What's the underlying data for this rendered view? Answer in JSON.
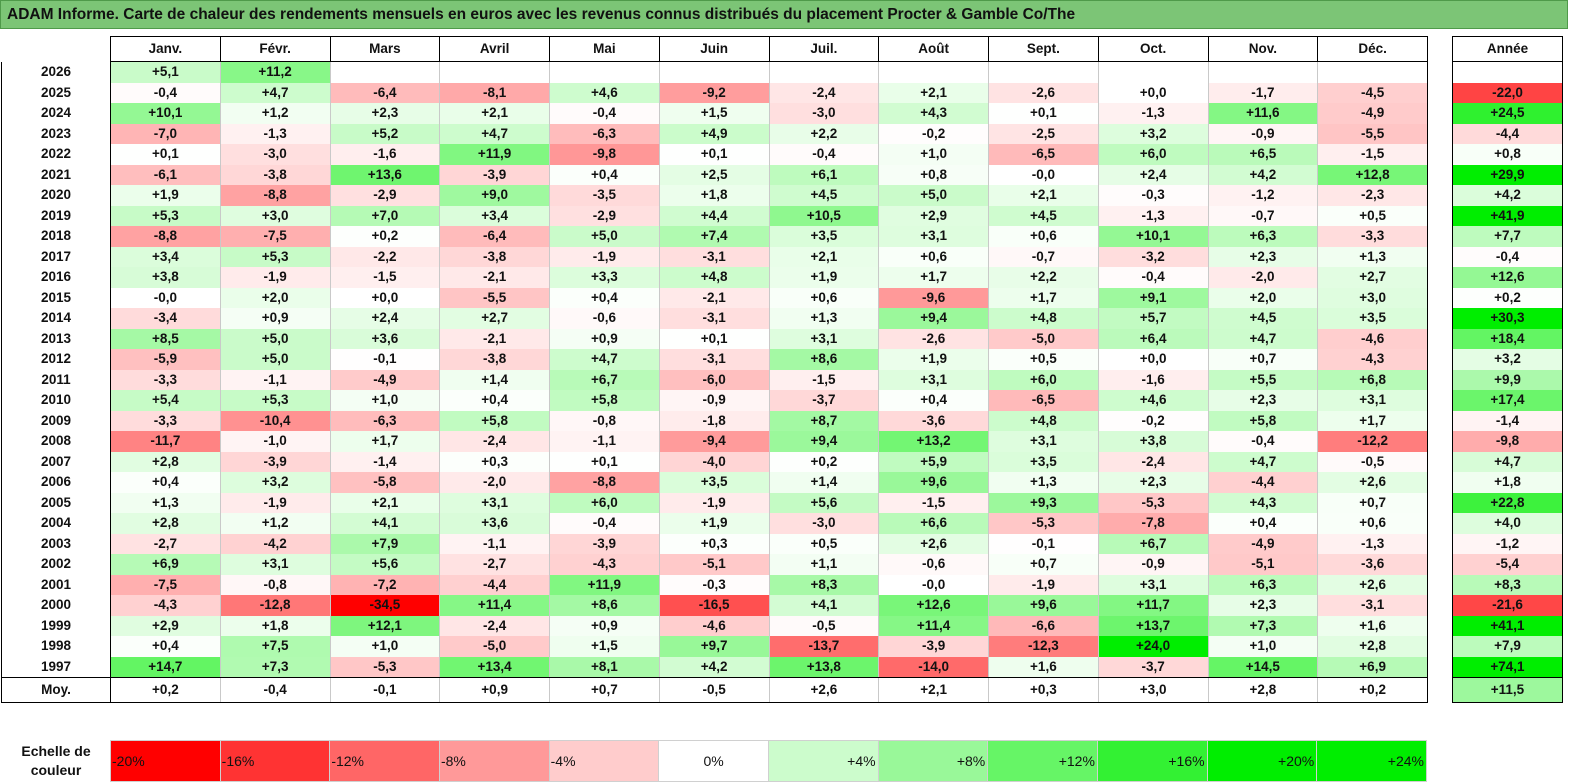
{
  "title": "ADAM Informe. Carte de chaleur des rendements mensuels en euros avec les revenus connus distribués du placement Procter & Gamble Co/The",
  "chart_data": {
    "type": "heatmap",
    "title": "ADAM Informe. Carte de chaleur des rendements mensuels en euros avec les revenus connus distribués du placement Procter & Gamble Co/The",
    "columns": [
      "Janv.",
      "Févr.",
      "Mars",
      "Avril",
      "Mai",
      "Juin",
      "Juil.",
      "Août",
      "Sept.",
      "Oct.",
      "Nov.",
      "Déc."
    ],
    "year_column_label": "Année",
    "rows": [
      {
        "year": "2026",
        "values": [
          "+5,1",
          "+11,2",
          "",
          "",
          "",
          "",
          "",
          "",
          "",
          "",
          "",
          ""
        ],
        "annual": ""
      },
      {
        "year": "2025",
        "values": [
          "-0,4",
          "+4,7",
          "-6,4",
          "-8,1",
          "+4,6",
          "-9,2",
          "-2,4",
          "+2,1",
          "-2,6",
          "+0,0",
          "-1,7",
          "-4,5"
        ],
        "annual": "-22,0"
      },
      {
        "year": "2024",
        "values": [
          "+10,1",
          "+1,2",
          "+2,3",
          "+2,1",
          "-0,4",
          "+1,5",
          "-3,0",
          "+4,3",
          "+0,1",
          "-1,3",
          "+11,6",
          "-4,9"
        ],
        "annual": "+24,5"
      },
      {
        "year": "2023",
        "values": [
          "-7,0",
          "-1,3",
          "+5,2",
          "+4,7",
          "-6,3",
          "+4,9",
          "+2,2",
          "-0,2",
          "-2,5",
          "+3,2",
          "-0,9",
          "-5,5"
        ],
        "annual": "-4,4"
      },
      {
        "year": "2022",
        "values": [
          "+0,1",
          "-3,0",
          "-1,6",
          "+11,9",
          "-9,8",
          "+0,1",
          "-0,4",
          "+1,0",
          "-6,5",
          "+6,0",
          "+6,5",
          "-1,5"
        ],
        "annual": "+0,8"
      },
      {
        "year": "2021",
        "values": [
          "-6,1",
          "-3,8",
          "+13,6",
          "-3,9",
          "+0,4",
          "+2,5",
          "+6,1",
          "+0,8",
          "-0,0",
          "+2,4",
          "+4,2",
          "+12,8"
        ],
        "annual": "+29,9"
      },
      {
        "year": "2020",
        "values": [
          "+1,9",
          "-8,8",
          "-2,9",
          "+9,0",
          "-3,5",
          "+1,8",
          "+4,5",
          "+5,0",
          "+2,1",
          "-0,3",
          "-1,2",
          "-2,3"
        ],
        "annual": "+4,2"
      },
      {
        "year": "2019",
        "values": [
          "+5,3",
          "+3,0",
          "+7,0",
          "+3,4",
          "-2,9",
          "+4,4",
          "+10,5",
          "+2,9",
          "+4,5",
          "-1,3",
          "-0,7",
          "+0,5"
        ],
        "annual": "+41,9"
      },
      {
        "year": "2018",
        "values": [
          "-8,8",
          "-7,5",
          "+0,2",
          "-6,4",
          "+5,0",
          "+7,4",
          "+3,5",
          "+3,1",
          "+0,6",
          "+10,1",
          "+6,3",
          "-3,3"
        ],
        "annual": "+7,7"
      },
      {
        "year": "2017",
        "values": [
          "+3,4",
          "+5,3",
          "-2,2",
          "-3,8",
          "-1,9",
          "-3,1",
          "+2,1",
          "+0,6",
          "-0,7",
          "-3,2",
          "+2,3",
          "+1,3"
        ],
        "annual": "-0,4"
      },
      {
        "year": "2016",
        "values": [
          "+3,8",
          "-1,9",
          "-1,5",
          "-2,1",
          "+3,3",
          "+4,8",
          "+1,9",
          "+1,7",
          "+2,2",
          "-0,4",
          "-2,0",
          "+2,7"
        ],
        "annual": "+12,6"
      },
      {
        "year": "2015",
        "values": [
          "-0,0",
          "+2,0",
          "+0,0",
          "-5,5",
          "+0,4",
          "-2,1",
          "+0,6",
          "-9,6",
          "+1,7",
          "+9,1",
          "+2,0",
          "+3,0"
        ],
        "annual": "+0,2"
      },
      {
        "year": "2014",
        "values": [
          "-3,4",
          "+0,9",
          "+2,4",
          "+2,7",
          "-0,6",
          "-3,1",
          "+1,3",
          "+9,4",
          "+4,8",
          "+5,7",
          "+4,5",
          "+3,5"
        ],
        "annual": "+30,3"
      },
      {
        "year": "2013",
        "values": [
          "+8,5",
          "+5,0",
          "+3,6",
          "-2,1",
          "+0,9",
          "+0,1",
          "+3,1",
          "-2,6",
          "-5,0",
          "+6,4",
          "+4,7",
          "-4,6"
        ],
        "annual": "+18,4"
      },
      {
        "year": "2012",
        "values": [
          "-5,9",
          "+5,0",
          "-0,1",
          "-3,8",
          "+4,7",
          "-3,1",
          "+8,6",
          "+1,9",
          "+0,5",
          "+0,0",
          "+0,7",
          "-4,3"
        ],
        "annual": "+3,2"
      },
      {
        "year": "2011",
        "values": [
          "-3,3",
          "-1,1",
          "-4,9",
          "+1,4",
          "+6,7",
          "-6,0",
          "-1,5",
          "+3,1",
          "+6,0",
          "-1,6",
          "+5,5",
          "+6,8"
        ],
        "annual": "+9,9"
      },
      {
        "year": "2010",
        "values": [
          "+5,4",
          "+5,3",
          "+1,0",
          "+0,4",
          "+5,8",
          "-0,9",
          "-3,7",
          "+0,4",
          "-6,5",
          "+4,6",
          "+2,3",
          "+3,1"
        ],
        "annual": "+17,4"
      },
      {
        "year": "2009",
        "values": [
          "-3,3",
          "-10,4",
          "-6,3",
          "+5,8",
          "-0,8",
          "-1,8",
          "+8,7",
          "-3,6",
          "+4,8",
          "-0,2",
          "+5,8",
          "+1,7"
        ],
        "annual": "-1,4"
      },
      {
        "year": "2008",
        "values": [
          "-11,7",
          "-1,0",
          "+1,7",
          "-2,4",
          "-1,1",
          "-9,4",
          "+9,4",
          "+13,2",
          "+3,1",
          "+3,8",
          "-0,4",
          "-12,2"
        ],
        "annual": "-9,8"
      },
      {
        "year": "2007",
        "values": [
          "+2,8",
          "-3,9",
          "-1,4",
          "+0,3",
          "+0,1",
          "-4,0",
          "+0,2",
          "+5,9",
          "+3,5",
          "-2,4",
          "+4,7",
          "-0,5"
        ],
        "annual": "+4,7"
      },
      {
        "year": "2006",
        "values": [
          "+0,4",
          "+3,2",
          "-5,8",
          "-2,0",
          "-8,8",
          "+3,5",
          "+1,4",
          "+9,6",
          "+1,3",
          "+2,3",
          "-4,4",
          "+2,6"
        ],
        "annual": "+1,8"
      },
      {
        "year": "2005",
        "values": [
          "+1,3",
          "-1,9",
          "+2,1",
          "+3,1",
          "+6,0",
          "-1,9",
          "+5,6",
          "-1,5",
          "+9,3",
          "-5,3",
          "+4,3",
          "+0,7"
        ],
        "annual": "+22,8"
      },
      {
        "year": "2004",
        "values": [
          "+2,8",
          "+1,2",
          "+4,1",
          "+3,6",
          "-0,4",
          "+1,9",
          "-3,0",
          "+6,6",
          "-5,3",
          "-7,8",
          "+0,4",
          "+0,6"
        ],
        "annual": "+4,0"
      },
      {
        "year": "2003",
        "values": [
          "-2,7",
          "-4,2",
          "+7,9",
          "-1,1",
          "-3,9",
          "+0,3",
          "+0,5",
          "+2,6",
          "-0,1",
          "+6,7",
          "-4,9",
          "-1,3"
        ],
        "annual": "-1,2"
      },
      {
        "year": "2002",
        "values": [
          "+6,9",
          "+3,1",
          "+5,6",
          "-2,7",
          "-4,3",
          "-5,1",
          "+1,1",
          "-0,6",
          "+0,7",
          "-0,9",
          "-5,1",
          "-3,6"
        ],
        "annual": "-5,4"
      },
      {
        "year": "2001",
        "values": [
          "-7,5",
          "-0,8",
          "-7,2",
          "-4,4",
          "+11,9",
          "-0,3",
          "+8,3",
          "-0,0",
          "-1,9",
          "+3,1",
          "+6,3",
          "+2,6"
        ],
        "annual": "+8,3"
      },
      {
        "year": "2000",
        "values": [
          "-4,3",
          "-12,8",
          "-34,5",
          "+11,4",
          "+8,6",
          "-16,5",
          "+4,1",
          "+12,6",
          "+9,6",
          "+11,7",
          "+2,3",
          "-3,1"
        ],
        "annual": "-21,6"
      },
      {
        "year": "1999",
        "values": [
          "+2,9",
          "+1,8",
          "+12,1",
          "-2,4",
          "+0,9",
          "-4,6",
          "-0,5",
          "+11,4",
          "-6,6",
          "+13,7",
          "+7,3",
          "+1,6"
        ],
        "annual": "+41,1"
      },
      {
        "year": "1998",
        "values": [
          "+0,4",
          "+7,5",
          "+1,0",
          "-5,0",
          "+1,5",
          "+9,7",
          "-13,7",
          "-3,9",
          "-12,3",
          "+24,0",
          "+1,0",
          "+2,8"
        ],
        "annual": "+7,9"
      },
      {
        "year": "1997",
        "values": [
          "+14,7",
          "+7,3",
          "-5,3",
          "+13,4",
          "+8,1",
          "+4,2",
          "+13,8",
          "-14,0",
          "+1,6",
          "-3,7",
          "+14,5",
          "+6,9"
        ],
        "annual": "+74,1"
      }
    ],
    "average": {
      "label": "Moy.",
      "values": [
        "+0,2",
        "-0,4",
        "-0,1",
        "+0,9",
        "+0,7",
        "-0,5",
        "+2,6",
        "+2,1",
        "+0,3",
        "+3,0",
        "+2,8",
        "+0,2"
      ],
      "annual": "+11,5"
    },
    "scale": {
      "label": "Echelle de couleur",
      "steps": [
        {
          "text": "-20%",
          "value": -20,
          "align": "left"
        },
        {
          "text": "-16%",
          "value": -16,
          "align": "left"
        },
        {
          "text": "-12%",
          "value": -12,
          "align": "left"
        },
        {
          "text": "-8%",
          "value": -8,
          "align": "left"
        },
        {
          "text": "-4%",
          "value": -4,
          "align": "left"
        },
        {
          "text": "0%",
          "value": 0,
          "align": "center"
        },
        {
          "text": "+4%",
          "value": 4,
          "align": "right"
        },
        {
          "text": "+8%",
          "value": 8,
          "align": "right"
        },
        {
          "text": "+12%",
          "value": 12,
          "align": "right"
        },
        {
          "text": "+16%",
          "value": 16,
          "align": "right"
        },
        {
          "text": "+20%",
          "value": 20,
          "align": "right"
        },
        {
          "text": "+24%",
          "value": 24,
          "align": "right"
        }
      ]
    },
    "colors": {
      "title_bg": "#7cc576",
      "negative_max": "#ff0000",
      "neutral": "#ffffff",
      "positive_max": "#00ee00"
    }
  }
}
